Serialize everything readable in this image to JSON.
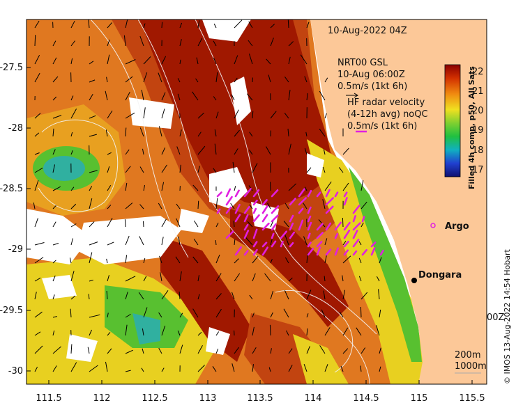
{
  "title": "10-Aug-2022 04Z",
  "model_legend": {
    "line1": "NRT00 GSL",
    "line2": "10-Aug 06:00Z",
    "line3": "0.5m/s (1kt 6h)"
  },
  "radar_legend": {
    "line1": "HF radar velocity",
    "line2": "(4-12h avg) noQC",
    "line3": "0.5m/s (1kt 6h)",
    "color": "#e020e0"
  },
  "colorbar": {
    "title": "Filled 4h comp, p50, All Sats",
    "ticks": [
      "22",
      "21",
      "20",
      "19",
      "18",
      "17"
    ]
  },
  "places": {
    "argo": "Argo",
    "dongara": "Dongara"
  },
  "depth_contours": {
    "c200": "200m",
    "c1000": "1000m"
  },
  "edge_fragment": "00Z",
  "credit": "© IMOS 13-Aug-2022 14:54 Hobart",
  "x_ticks": [
    "111.5",
    "112",
    "112.5",
    "113",
    "113.5",
    "114",
    "114.5",
    "115",
    "115.5"
  ],
  "y_ticks": [
    "-27.5",
    "-28",
    "-28.5",
    "-29",
    "-29.5",
    "-30"
  ],
  "colors": {
    "land": "#fcc898",
    "sst_hot": "#a01800",
    "sst_orange": "#e07820",
    "sst_yellow": "#e8d020",
    "sst_green": "#58c030",
    "sst_cyan": "#30b0a0"
  }
}
